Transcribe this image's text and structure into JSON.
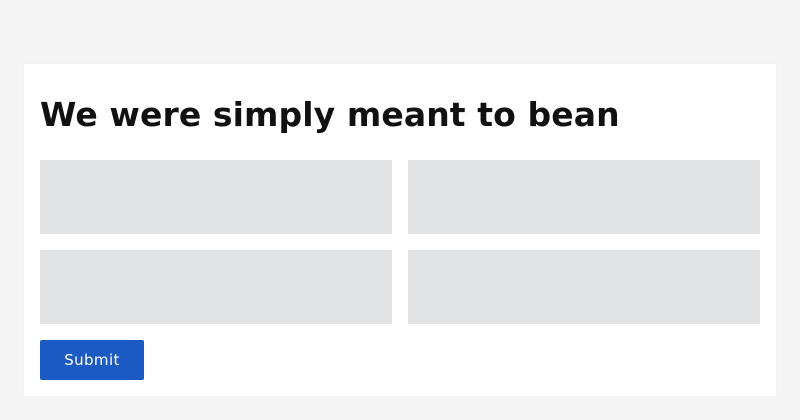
{
  "form": {
    "title": "We were simply meant to bean",
    "fields": [
      {
        "value": "",
        "placeholder": ""
      },
      {
        "value": "",
        "placeholder": ""
      },
      {
        "value": "",
        "placeholder": ""
      },
      {
        "value": "",
        "placeholder": ""
      }
    ],
    "submit_label": "Submit"
  },
  "colors": {
    "page_background": "#f4f4f4",
    "card_background": "#ffffff",
    "field_background": "#e1e3e4",
    "submit_background": "#1b5ac2",
    "title_text": "#111111",
    "submit_text": "#ffffff"
  }
}
